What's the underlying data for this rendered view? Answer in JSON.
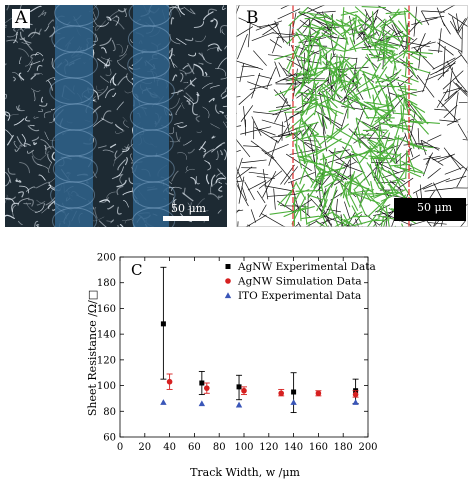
{
  "panels": {
    "a": {
      "letter": "A",
      "scale_label": "50 μm"
    },
    "b": {
      "letter": "B",
      "scale_label": "50 μm"
    }
  },
  "colors": {
    "micrograph_bg": "#1d2a33",
    "track": "#2f5f86",
    "wire_bright": "#e6eef6",
    "wire_black": "#111111",
    "wire_green": "#4caf3a",
    "track_edge": "#e03030",
    "agnw_exp": "#000000",
    "agnw_sim": "#d62020",
    "ito_exp": "#3a56b8"
  },
  "chart_data": {
    "type": "scatter",
    "panel_label": "C",
    "xlabel": "Track Width, w /μm",
    "ylabel": "Sheet Resistance /Ω/□",
    "xlim": [
      0,
      200
    ],
    "ylim": [
      60,
      200
    ],
    "xticks": [
      0,
      20,
      40,
      60,
      80,
      100,
      120,
      140,
      160,
      180,
      200
    ],
    "yticks": [
      60,
      80,
      100,
      120,
      140,
      160,
      180,
      200
    ],
    "grid": false,
    "legend_position": "top-right",
    "series": [
      {
        "name": "AgNW Experimental Data",
        "marker": "square",
        "color": "#000000",
        "points": [
          {
            "x": 35,
            "y": 148,
            "yerr_low": 105,
            "yerr_high": 192
          },
          {
            "x": 66,
            "y": 102,
            "yerr_low": 93,
            "yerr_high": 111
          },
          {
            "x": 96,
            "y": 99,
            "yerr_low": 89,
            "yerr_high": 108
          },
          {
            "x": 140,
            "y": 95,
            "yerr_low": 79,
            "yerr_high": 110
          },
          {
            "x": 190,
            "y": 96,
            "yerr_low": 86,
            "yerr_high": 105
          }
        ]
      },
      {
        "name": "AgNW Simulation Data",
        "marker": "circle",
        "color": "#d62020",
        "points": [
          {
            "x": 40,
            "y": 103,
            "yerr_low": 97,
            "yerr_high": 109
          },
          {
            "x": 70,
            "y": 98,
            "yerr_low": 94,
            "yerr_high": 102
          },
          {
            "x": 100,
            "y": 96,
            "yerr_low": 93,
            "yerr_high": 99
          },
          {
            "x": 130,
            "y": 94,
            "yerr_low": 92,
            "yerr_high": 97
          },
          {
            "x": 160,
            "y": 94,
            "yerr_low": 92,
            "yerr_high": 96
          },
          {
            "x": 190,
            "y": 93,
            "yerr_low": 91,
            "yerr_high": 96
          }
        ]
      },
      {
        "name": "ITO Experimental Data",
        "marker": "triangle",
        "color": "#3a56b8",
        "points": [
          {
            "x": 35,
            "y": 87
          },
          {
            "x": 66,
            "y": 86
          },
          {
            "x": 96,
            "y": 85
          },
          {
            "x": 140,
            "y": 87
          },
          {
            "x": 190,
            "y": 87
          }
        ]
      }
    ]
  }
}
